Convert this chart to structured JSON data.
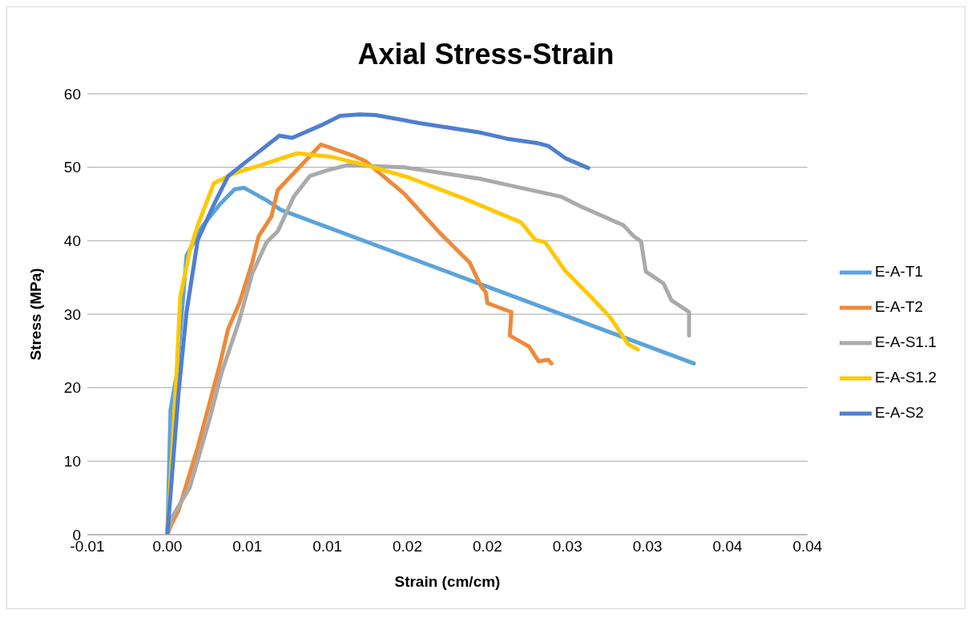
{
  "chart_data": {
    "type": "line",
    "title": "Axial Stress-Strain",
    "xlabel": "Strain (cm/cm)",
    "ylabel": "Stress (MPa)",
    "xlim": [
      -0.005,
      0.04
    ],
    "xticks": [
      {
        "value": -0.005,
        "label": "-0.01"
      },
      {
        "value": 0,
        "label": "0.00"
      },
      {
        "value": 0.005,
        "label": "0.01"
      },
      {
        "value": 0.01,
        "label": "0.01"
      },
      {
        "value": 0.015,
        "label": "0.02"
      },
      {
        "value": 0.02,
        "label": "0.02"
      },
      {
        "value": 0.025,
        "label": "0.03"
      },
      {
        "value": 0.03,
        "label": "0.03"
      },
      {
        "value": 0.035,
        "label": "0.04"
      },
      {
        "value": 0.04,
        "label": "0.04"
      }
    ],
    "ylim": [
      0,
      60
    ],
    "yticks": [
      0,
      10,
      20,
      30,
      40,
      50,
      60
    ],
    "grid": "y",
    "legend": "right",
    "marker": "none",
    "line_style": "solid",
    "series": [
      {
        "name": "E-A-T1",
        "color": "#5ba3dc",
        "x": [
          0,
          0.0002,
          0.0006,
          0.0012,
          0.0022,
          0.0033,
          0.0042,
          0.0048,
          0.0062,
          0.0071,
          0.0329
        ],
        "values": [
          0,
          17,
          22,
          38,
          42,
          45,
          47,
          47.2,
          45.5,
          44.2,
          23.3
        ]
      },
      {
        "name": "E-A-T2",
        "color": "#ed8a3a",
        "x": [
          0,
          0.0003,
          0.0007,
          0.0019,
          0.0033,
          0.0038,
          0.0045,
          0.0053,
          0.0057,
          0.0065,
          0.0069,
          0.0079,
          0.0096,
          0.0117,
          0.0124,
          0.0148,
          0.0171,
          0.0189,
          0.0196,
          0.0199,
          0.02,
          0.0215,
          0.0214,
          0.0226,
          0.0232,
          0.0238,
          0.024
        ],
        "values": [
          0,
          1.6,
          3.3,
          11.9,
          23.3,
          28,
          31.5,
          37,
          40.6,
          43.3,
          46.9,
          49.2,
          53.1,
          51.5,
          50.8,
          46.4,
          40.9,
          37,
          33.8,
          33,
          31.5,
          30.3,
          27.1,
          25.6,
          23.6,
          23.8,
          23.3
        ]
      },
      {
        "name": "E-A-S1.1",
        "color": "#aaaaaa",
        "x": [
          0,
          0.0003,
          0.0014,
          0.0026,
          0.0034,
          0.0045,
          0.0053,
          0.0062,
          0.0069,
          0.0079,
          0.0089,
          0.01,
          0.0113,
          0.0148,
          0.0196,
          0.0221,
          0.0246,
          0.0258,
          0.0285,
          0.0291,
          0.0296,
          0.0299,
          0.031,
          0.0315,
          0.0326,
          0.0326
        ],
        "values": [
          0,
          2.4,
          6.4,
          15.4,
          22.1,
          29.2,
          35.5,
          39.8,
          41.3,
          46,
          48.8,
          49.6,
          50.3,
          50,
          48.4,
          47.2,
          46,
          44.7,
          42.1,
          40.7,
          39.9,
          35.8,
          34.2,
          31.9,
          30.3,
          27.1
        ]
      },
      {
        "name": "E-A-S1.2",
        "color": "#ffc800",
        "x": [
          0,
          0.00056,
          0.0008,
          0.0014,
          0.0019,
          0.0029,
          0.0042,
          0.0057,
          0.0081,
          0.0103,
          0.0124,
          0.0151,
          0.0186,
          0.0221,
          0.023,
          0.0236,
          0.0249,
          0.0265,
          0.0277,
          0.0288,
          0.0294
        ],
        "values": [
          0,
          21.3,
          32.3,
          38.6,
          42.1,
          47.8,
          49.2,
          50.2,
          51.9,
          51.4,
          50.3,
          48.6,
          45.7,
          42.5,
          40.1,
          39.8,
          35.8,
          32.3,
          29.5,
          25.9,
          25.2
        ]
      },
      {
        "name": "E-A-S2",
        "color": "#4f7fd0",
        "x": [
          0,
          0.0007,
          0.0012,
          0.0019,
          0.0029,
          0.0038,
          0.0053,
          0.007,
          0.0078,
          0.0096,
          0.0108,
          0.012,
          0.013,
          0.0158,
          0.0196,
          0.0212,
          0.0231,
          0.0238,
          0.0249,
          0.0263
        ],
        "values": [
          0,
          19.3,
          30.3,
          40.1,
          44.9,
          48.8,
          51.4,
          54.3,
          54,
          55.7,
          57,
          57.2,
          57.1,
          56,
          54.7,
          53.9,
          53.3,
          52.9,
          51.2,
          49.9
        ]
      }
    ]
  }
}
